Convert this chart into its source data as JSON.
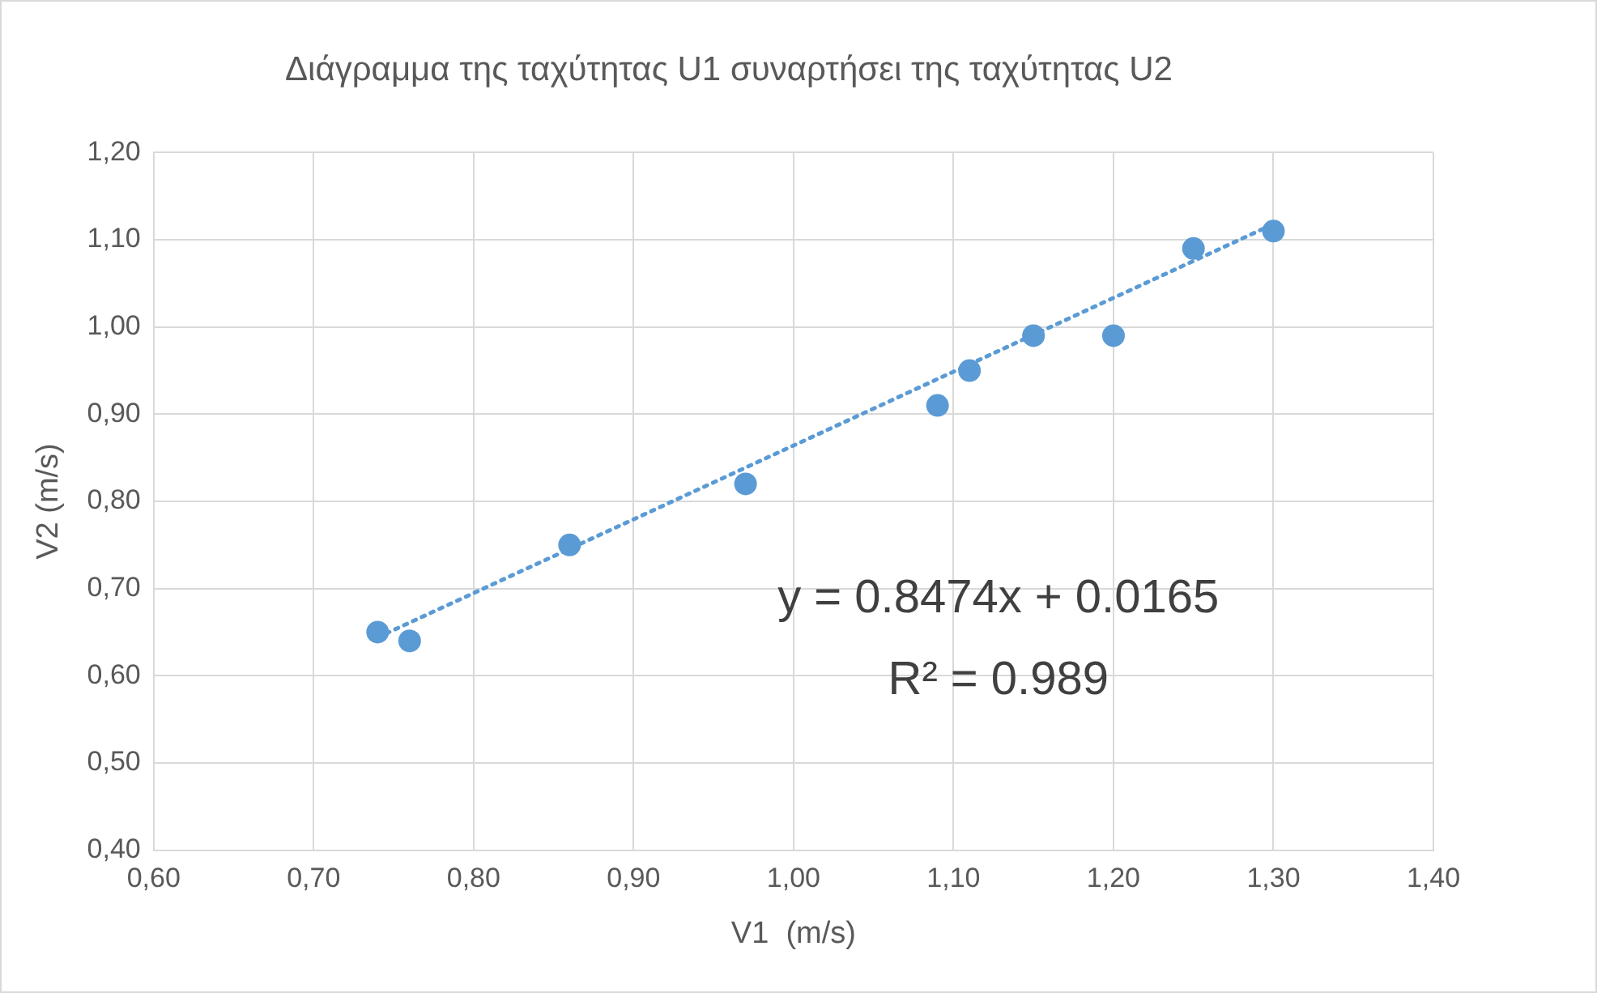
{
  "chart_data": {
    "type": "scatter",
    "title": "Διάγραμμα της ταχύτητας U1 συναρτήσει της ταχύτητας U2",
    "xlabel": "V1  (m/s)",
    "ylabel": "V2 (m/s)",
    "marker": "circle",
    "grid": true,
    "x": [
      0.74,
      0.76,
      0.86,
      0.97,
      1.09,
      1.11,
      1.15,
      1.2,
      1.25,
      1.3
    ],
    "series": [
      {
        "color": "#5b9bd5",
        "values": [
          0.65,
          0.64,
          0.75,
          0.82,
          0.91,
          0.95,
          0.99,
          0.99,
          1.09,
          1.11
        ]
      },
      {
        "type": "line",
        "x": [
          0.74,
          1.3
        ],
        "values": [
          0.644,
          1.118
        ],
        "color": "#5b9bd5",
        "line_style": "dotted",
        "marker": "none"
      }
    ],
    "xlim": [
      0.6,
      1.4
    ],
    "ylim": [
      0.4,
      1.2
    ],
    "xticks": [
      {
        "value": 0.6,
        "label": "0,60"
      },
      {
        "value": 0.7,
        "label": "0,70"
      },
      {
        "value": 0.8,
        "label": "0,80"
      },
      {
        "value": 0.9,
        "label": "0,90"
      },
      {
        "value": 1.0,
        "label": "1,00"
      },
      {
        "value": 1.1,
        "label": "1,10"
      },
      {
        "value": 1.2,
        "label": "1,20"
      },
      {
        "value": 1.3,
        "label": "1,30"
      },
      {
        "value": 1.4,
        "label": "1,40"
      }
    ],
    "yticks": [
      {
        "value": 0.4,
        "label": "0,40"
      },
      {
        "value": 0.5,
        "label": "0,50"
      },
      {
        "value": 0.6,
        "label": "0,60"
      },
      {
        "value": 0.7,
        "label": "0,70"
      },
      {
        "value": 0.8,
        "label": "0,80"
      },
      {
        "value": 0.9,
        "label": "0,90"
      },
      {
        "value": 1.0,
        "label": "1,00"
      },
      {
        "value": 1.1,
        "label": "1,10"
      },
      {
        "value": 1.2,
        "label": "1,20"
      }
    ],
    "annotations": [
      "y = 0.8474x + 0.0165",
      "R² = 0.989"
    ]
  }
}
